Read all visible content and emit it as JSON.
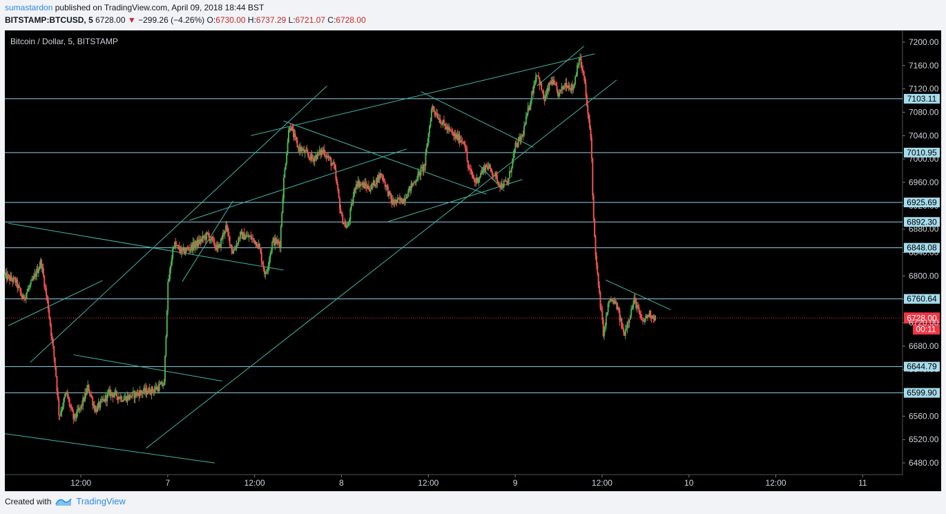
{
  "header": {
    "author": "sumastardon",
    "published_text": "published on TradingView.com, April 09, 2018 18:44 BST",
    "symbol": "BITSTAMP:BTCUSD, 5",
    "last": "6728.00",
    "change": "−299.26 (−4.26%)",
    "o_label": "O:",
    "o_value": "6730.00",
    "h_label": "H:",
    "h_value": "6737.29",
    "l_label": "L:",
    "l_value": "6721.07",
    "c_label": "C:",
    "c_value": "6728.00"
  },
  "footer": {
    "created_with": "Created with",
    "brand": "TradingView"
  },
  "colors": {
    "background": "#000000",
    "up": "#26a69a",
    "up_body": "#4caf50",
    "down": "#ef5350",
    "level_line": "#8fd3e8",
    "trend_line": "#3fb8a8",
    "price_tag_bg": "#a6dcec",
    "last_price": "#f23645"
  },
  "chart_data": {
    "type": "candlestick",
    "title": "Bitcoin / Dollar, 5, BITSTAMP",
    "ylim": [
      6460,
      7220
    ],
    "y_ticks": [
      7200,
      7160,
      7120,
      7080,
      7040,
      7000,
      6960,
      6920,
      6880,
      6840,
      6800,
      6760,
      6720,
      6680,
      6640,
      6600,
      6560,
      6520,
      6480
    ],
    "x_ticks": [
      {
        "label": "12:00",
        "t": 12
      },
      {
        "label": "7",
        "t": 24
      },
      {
        "label": "12:00",
        "t": 36
      },
      {
        "label": "8",
        "t": 48
      },
      {
        "label": "12:00",
        "t": 60
      },
      {
        "label": "9",
        "t": 72
      },
      {
        "label": "12:00",
        "t": 84
      },
      {
        "label": "10",
        "t": 96
      },
      {
        "label": "12:00",
        "t": 108
      },
      {
        "label": "11",
        "t": 120
      }
    ],
    "xlim": [
      1.5,
      125.5
    ],
    "horizontal_levels": [
      7103.11,
      7010.95,
      6925.69,
      6892.3,
      6848.08,
      6760.64,
      6644.79,
      6599.9
    ],
    "last_price": {
      "value": 6728.0,
      "label": "6728.00",
      "countdown": "00:11"
    },
    "price_path": [
      [
        1.5,
        6800
      ],
      [
        3,
        6790
      ],
      [
        4,
        6760
      ],
      [
        5.5,
        6795
      ],
      [
        6.5,
        6825
      ],
      [
        7.5,
        6745
      ],
      [
        8.5,
        6640
      ],
      [
        9,
        6560
      ],
      [
        10,
        6600
      ],
      [
        11,
        6555
      ],
      [
        12,
        6575
      ],
      [
        13,
        6610
      ],
      [
        14,
        6570
      ],
      [
        16,
        6600
      ],
      [
        18,
        6590
      ],
      [
        20,
        6600
      ],
      [
        22,
        6605
      ],
      [
        23.5,
        6615
      ],
      [
        24,
        6780
      ],
      [
        24.8,
        6855
      ],
      [
        26,
        6840
      ],
      [
        28,
        6855
      ],
      [
        29.5,
        6870
      ],
      [
        31,
        6845
      ],
      [
        32,
        6885
      ],
      [
        33,
        6840
      ],
      [
        34,
        6870
      ],
      [
        35.5,
        6865
      ],
      [
        36.5,
        6855
      ],
      [
        37.5,
        6800
      ],
      [
        38.5,
        6860
      ],
      [
        39.5,
        6855
      ],
      [
        40,
        6960
      ],
      [
        40.8,
        7060
      ],
      [
        42,
        7020
      ],
      [
        44,
        7000
      ],
      [
        45.5,
        7015
      ],
      [
        47,
        6985
      ],
      [
        48,
        6900
      ],
      [
        48.8,
        6880
      ],
      [
        50,
        6960
      ],
      [
        52,
        6950
      ],
      [
        53.5,
        6975
      ],
      [
        55,
        6925
      ],
      [
        56.5,
        6930
      ],
      [
        58,
        6960
      ],
      [
        59.5,
        6990
      ],
      [
        60.5,
        7090
      ],
      [
        62,
        7060
      ],
      [
        63.5,
        7040
      ],
      [
        65,
        7030
      ],
      [
        65.5,
        6985
      ],
      [
        66.5,
        6960
      ],
      [
        68,
        6990
      ],
      [
        69,
        6975
      ],
      [
        70,
        6955
      ],
      [
        71,
        6960
      ],
      [
        72,
        7020
      ],
      [
        73,
        7040
      ],
      [
        74,
        7095
      ],
      [
        75,
        7150
      ],
      [
        76,
        7100
      ],
      [
        77,
        7135
      ],
      [
        78,
        7110
      ],
      [
        79,
        7130
      ],
      [
        80,
        7120
      ],
      [
        80.8,
        7175
      ],
      [
        81.5,
        7140
      ],
      [
        82,
        7080
      ],
      [
        82.5,
        7030
      ],
      [
        82.8,
        6900
      ],
      [
        83.2,
        6820
      ],
      [
        83.6,
        6770
      ],
      [
        84.2,
        6700
      ],
      [
        85,
        6760
      ],
      [
        86,
        6750
      ],
      [
        87,
        6700
      ],
      [
        87.5,
        6720
      ],
      [
        88.5,
        6760
      ],
      [
        89.5,
        6720
      ],
      [
        90.5,
        6735
      ],
      [
        91.5,
        6728
      ]
    ],
    "trend_lines": [
      [
        1.5,
        6530,
        30.5,
        6480
      ],
      [
        11,
        6665,
        31.5,
        6620
      ],
      [
        2,
        6890,
        40,
        6810
      ],
      [
        26,
        6790,
        33,
        6928
      ],
      [
        2,
        6715,
        15,
        6792
      ],
      [
        5,
        6652,
        46,
        7125
      ],
      [
        21,
        6505,
        86,
        7135
      ],
      [
        27,
        6895,
        57,
        7017
      ],
      [
        35.5,
        7040,
        83,
        7180
      ],
      [
        40,
        7065,
        68,
        6940
      ],
      [
        59,
        7115,
        74.5,
        7020
      ],
      [
        54.5,
        6893,
        73,
        6965
      ],
      [
        67,
        6990,
        70.5,
        6945
      ],
      [
        84.5,
        6793,
        93.5,
        6742
      ],
      [
        75,
        7125,
        81.5,
        7193
      ]
    ]
  }
}
